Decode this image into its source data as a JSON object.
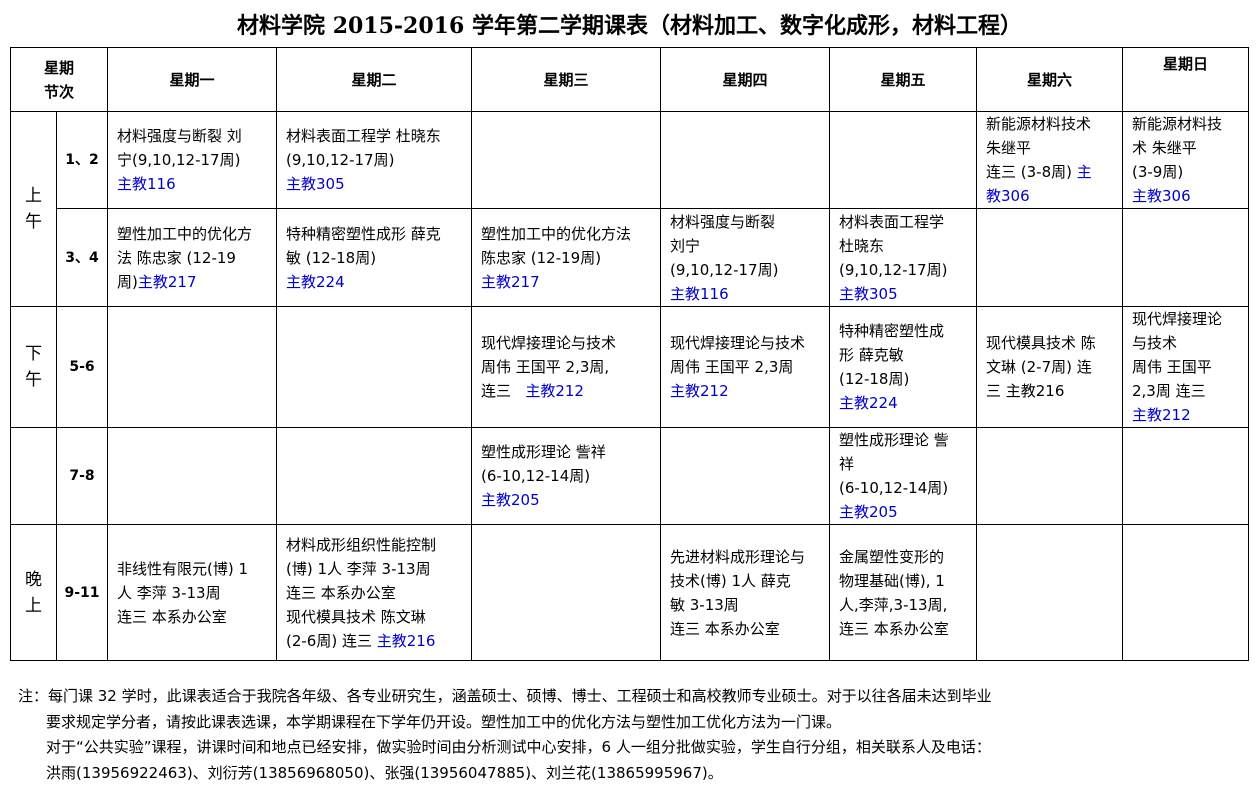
{
  "title": "材料学院 2015-2016 学年第二学期课表（材料加工、数字化成形，材料工程）",
  "header": {
    "corner_top": "星期",
    "corner_bottom": "节次",
    "days": [
      "星期一",
      "星期二",
      "星期三",
      "星期四",
      "星期五",
      "星期六",
      "星期日"
    ]
  },
  "periods": {
    "morning": "上午",
    "afternoon": "下午",
    "evening": "晚上"
  },
  "colors": {
    "room": "#0000cc"
  },
  "rows": [
    {
      "section": "1、2",
      "cells": [
        [
          [
            {
              "t": "材料强度与断裂 刘"
            }
          ],
          [
            {
              "t": "宁(9,10,12-17周)"
            }
          ],
          [
            {
              "t": "主教116",
              "blue": true
            }
          ]
        ],
        [
          [
            {
              "t": "材料表面工程学 杜晓东"
            }
          ],
          [
            {
              "t": "(9,10,12-17周)"
            }
          ],
          [
            {
              "t": "主教305",
              "blue": true
            }
          ]
        ],
        [],
        [],
        [],
        [
          [
            {
              "t": "新能源材料技术"
            }
          ],
          [
            {
              "t": "朱继平"
            }
          ],
          [
            {
              "t": "连三 (3-8周) "
            },
            {
              "t": "主",
              "blue": true
            }
          ],
          [
            {
              "t": "教306",
              "blue": true
            }
          ]
        ],
        [
          [
            {
              "t": "新能源材料技"
            }
          ],
          [
            {
              "t": "术 朱继平"
            }
          ],
          [
            {
              "t": "(3-9周)"
            }
          ],
          [
            {
              "t": "主教306",
              "blue": true
            }
          ]
        ]
      ]
    },
    {
      "section": "3、4",
      "cells": [
        [
          [
            {
              "t": "塑性加工中的优化方"
            }
          ],
          [
            {
              "t": "法 陈忠家 (12-19"
            }
          ],
          [
            {
              "t": "周)"
            },
            {
              "t": "主教217",
              "blue": true
            }
          ]
        ],
        [
          [
            {
              "t": "特种精密塑性成形 薛克"
            }
          ],
          [
            {
              "t": "敏 (12-18周)"
            }
          ],
          [
            {
              "t": "主教224",
              "blue": true
            }
          ]
        ],
        [
          [
            {
              "t": "塑性加工中的优化方法"
            }
          ],
          [
            {
              "t": "陈忠家 (12-19周)"
            }
          ],
          [
            {
              "t": "主教217",
              "blue": true
            }
          ]
        ],
        [
          [
            {
              "t": "材料强度与断裂"
            }
          ],
          [
            {
              "t": "刘宁"
            }
          ],
          [
            {
              "t": "(9,10,12-17周)"
            }
          ],
          [
            {
              "t": "主教116",
              "blue": true
            }
          ]
        ],
        [
          [
            {
              "t": "材料表面工程学"
            }
          ],
          [
            {
              "t": "杜晓东"
            }
          ],
          [
            {
              "t": "(9,10,12-17周)"
            }
          ],
          [
            {
              "t": "主教305",
              "blue": true
            }
          ]
        ],
        [],
        []
      ]
    },
    {
      "section": "5-6",
      "cells": [
        [],
        [],
        [
          [
            {
              "t": "现代焊接理论与技术"
            }
          ],
          [
            {
              "t": "周伟 王国平 2,3周,"
            }
          ],
          [
            {
              "t": "连三   "
            },
            {
              "t": "主教212",
              "blue": true
            }
          ]
        ],
        [
          [
            {
              "t": "现代焊接理论与技术"
            }
          ],
          [
            {
              "t": "周伟 王国平 2,3周"
            }
          ],
          [
            {
              "t": "主教212",
              "blue": true
            }
          ]
        ],
        [
          [
            {
              "t": "特种精密塑性成"
            }
          ],
          [
            {
              "t": "形 薛克敏"
            }
          ],
          [
            {
              "t": "(12-18周)"
            }
          ],
          [
            {
              "t": "主教224",
              "blue": true
            }
          ]
        ],
        [
          [
            {
              "t": "现代模具技术 陈"
            }
          ],
          [
            {
              "t": "文琳 (2-7周) 连"
            }
          ],
          [
            {
              "t": "三 主教216"
            }
          ]
        ],
        [
          [
            {
              "t": "现代焊接理论"
            }
          ],
          [
            {
              "t": "与技术"
            }
          ],
          [
            {
              "t": "周伟 王国平"
            }
          ],
          [
            {
              "t": "2,3周 连三"
            }
          ],
          [
            {
              "t": "主教212",
              "blue": true
            }
          ]
        ]
      ]
    },
    {
      "section": "7-8",
      "cells": [
        [],
        [],
        [
          [
            {
              "t": "塑性成形理论 訾祥"
            }
          ],
          [
            {
              "t": "(6-10,12-14周)"
            }
          ],
          [
            {
              "t": "主教205",
              "blue": true
            }
          ]
        ],
        [],
        [
          [
            {
              "t": "塑性成形理论 訾"
            }
          ],
          [
            {
              "t": "祥"
            }
          ],
          [
            {
              "t": "(6-10,12-14周)"
            }
          ],
          [
            {
              "t": "主教205",
              "blue": true
            }
          ]
        ],
        [],
        []
      ]
    },
    {
      "section": "9-11",
      "cells": [
        [
          [
            {
              "t": "非线性有限元(博) 1"
            }
          ],
          [
            {
              "t": "人 李萍 3-13周"
            }
          ],
          [
            {
              "t": "连三 本系办公室"
            }
          ]
        ],
        [
          [
            {
              "t": "材料成形组织性能控制"
            }
          ],
          [
            {
              "t": "(博) 1人 李萍 3-13周"
            }
          ],
          [
            {
              "t": "连三 本系办公室"
            }
          ],
          [
            {
              "t": "现代模具技术 陈文琳"
            }
          ],
          [
            {
              "t": "(2-6周) 连三 "
            },
            {
              "t": "主教216",
              "blue": true
            }
          ]
        ],
        [],
        [
          [
            {
              "t": "先进材料成形理论与"
            }
          ],
          [
            {
              "t": "技术(博) 1人 薛克"
            }
          ],
          [
            {
              "t": "敏 3-13周"
            }
          ],
          [
            {
              "t": "连三 本系办公室"
            }
          ]
        ],
        [
          [
            {
              "t": "金属塑性变形的"
            }
          ],
          [
            {
              "t": "物理基础(博), 1"
            }
          ],
          [
            {
              "t": "人,李萍,3-13周,"
            }
          ],
          [
            {
              "t": "连三 本系办公室"
            }
          ]
        ],
        [],
        []
      ]
    }
  ],
  "notes": [
    "注：每门课 32 学时，此课表适合于我院各年级、各专业研究生，涵盖硕士、硕博、博士、工程硕士和高校教师专业硕士。对于以往各届未达到毕业",
    "要求规定学分者，请按此课表选课，本学期课程在下学年仍开设。塑性加工中的优化方法与塑性加工优化方法为一门课。",
    "对于“公共实验”课程，讲课时间和地点已经安排，做实验时间由分析测试中心安排，6 人一组分批做实验，学生自行分组，相关联系人及电话：",
    "洪雨(13956922463)、刘衍芳(13856968050)、张强(13956047885)、刘兰花(13865995967)。"
  ]
}
